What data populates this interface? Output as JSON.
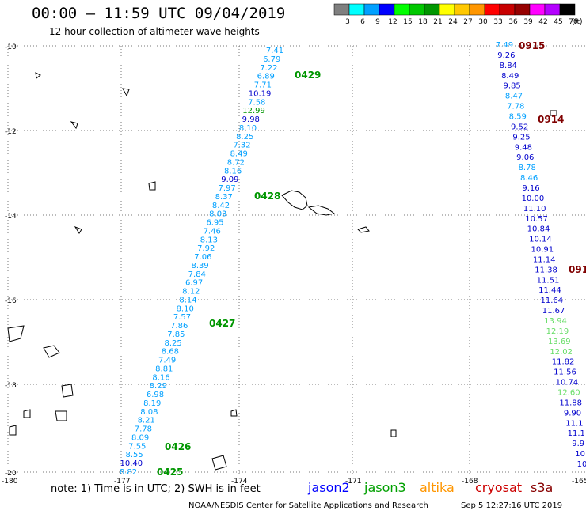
{
  "header": {
    "title": "00:00 – 11:59 UTC 09/04/2019",
    "subtitle": "12 hour collection of altimeter wave heights"
  },
  "legend": {
    "unit": "(ft)",
    "bins": [
      {
        "label": "3",
        "color": "#7f7f7f"
      },
      {
        "label": "6",
        "color": "#00ffff"
      },
      {
        "label": "9",
        "color": "#00a0ff"
      },
      {
        "label": "12",
        "color": "#0000ff"
      },
      {
        "label": "15",
        "color": "#00ff00"
      },
      {
        "label": "18",
        "color": "#00c800"
      },
      {
        "label": "21",
        "color": "#009600"
      },
      {
        "label": "24",
        "color": "#ffff00"
      },
      {
        "label": "27",
        "color": "#ffc800"
      },
      {
        "label": "30",
        "color": "#ff9600"
      },
      {
        "label": "33",
        "color": "#ff0000"
      },
      {
        "label": "36",
        "color": "#c80000"
      },
      {
        "label": "39",
        "color": "#960000"
      },
      {
        "label": "42",
        "color": "#ff00ff"
      },
      {
        "label": "45",
        "color": "#b400ff"
      },
      {
        "label": "70",
        "color": "#000000"
      }
    ]
  },
  "axes": {
    "lon_labels": [
      "-180",
      "-177",
      "-174",
      "-171",
      "-168",
      "-165"
    ],
    "lat_labels": [
      "-10",
      "-12",
      "-14",
      "-16",
      "-18",
      "-20"
    ]
  },
  "colors": {
    "cyan_track": "#00a0ff",
    "blue_track": "#0000cc",
    "green_pass": "#009600",
    "cryosat": "#cc0000",
    "light_green": "#66dd66",
    "pass_dark_red": "#800000"
  },
  "tracks": {
    "jason3_west": {
      "values": [
        "7.41",
        "6.79",
        "7.22",
        "6.89",
        "7.71",
        "10.19",
        "7.58",
        "12.99",
        "9.98",
        "8.10",
        "8.25",
        "7.32",
        "8.49",
        "8.72",
        "8.16",
        "9.09",
        "7.97",
        "8.37",
        "8.42",
        "8.03",
        "6.95",
        "7.46",
        "8.13",
        "7.92",
        "7.06",
        "8.39",
        "7.84",
        "6.97",
        "8.12",
        "8.14",
        "8.10",
        "7.57",
        "7.86",
        "7.85",
        "8.25",
        "8.68",
        "7.49",
        "8.81",
        "8.16",
        "8.29",
        "6.98",
        "8.19",
        "8.08",
        "8.21",
        "7.78",
        "8.09",
        "7.55",
        "8.55",
        "10.40",
        "8.82"
      ],
      "colors": [
        "cyan",
        "cyan",
        "cyan",
        "cyan",
        "cyan",
        "blue",
        "cyan",
        "green",
        "blue",
        "cyan",
        "cyan",
        "cyan",
        "cyan",
        "cyan",
        "cyan",
        "blue",
        "cyan",
        "cyan",
        "cyan",
        "cyan",
        "cyan",
        "cyan",
        "cyan",
        "cyan",
        "cyan",
        "cyan",
        "cyan",
        "cyan",
        "cyan",
        "cyan",
        "cyan",
        "cyan",
        "cyan",
        "cyan",
        "cyan",
        "cyan",
        "cyan",
        "cyan",
        "cyan",
        "cyan",
        "cyan",
        "cyan",
        "cyan",
        "cyan",
        "cyan",
        "cyan",
        "cyan",
        "cyan",
        "blue",
        "cyan"
      ]
    },
    "east": {
      "values": [
        "7.49",
        "9.26",
        "8.84",
        "8.49",
        "9.85",
        "8.47",
        "7.78",
        "8.59",
        "9.52",
        "9.25",
        "9.48",
        "9.06",
        "8.78",
        "8.46",
        "9.16",
        "10.00",
        "11.10",
        "10.57",
        "10.84",
        "10.14",
        "10.91",
        "11.14",
        "11.38",
        "11.51",
        "11.44",
        "11.64",
        "11.67",
        "13.94",
        "12.19",
        "13.69",
        "12.02",
        "11.82",
        "11.56",
        "10.74",
        "12.60",
        "11.88",
        "9.90",
        "11.1",
        "11.1",
        "9.9",
        "10",
        "10"
      ],
      "colors": [
        "cyan",
        "blue",
        "blue",
        "blue",
        "blue",
        "cyan",
        "cyan",
        "cyan",
        "blue",
        "blue",
        "blue",
        "blue",
        "cyan",
        "cyan",
        "blue",
        "blue",
        "blue",
        "blue",
        "blue",
        "blue",
        "blue",
        "blue",
        "blue",
        "blue",
        "blue",
        "blue",
        "blue",
        "lgreen",
        "lgreen",
        "lgreen",
        "lgreen",
        "blue",
        "blue",
        "blue",
        "lgreen",
        "blue",
        "blue",
        "blue",
        "blue",
        "blue",
        "blue",
        "blue"
      ]
    }
  },
  "pass_labels": {
    "p0429": "0429",
    "p0428": "0428",
    "p0427": "0427",
    "p0426": "0426",
    "p0425": "0425",
    "p0915": "0915",
    "p0914": "0914",
    "p091x": "091"
  },
  "note": "note: 1) Time is in UTC; 2) SWH is in feet",
  "satellites": [
    {
      "name": "jason2",
      "color": "#0000ff"
    },
    {
      "name": "jason3",
      "color": "#00a000"
    },
    {
      "name": "altika",
      "color": "#ff9600"
    },
    {
      "name": "cryosat",
      "color": "#cc0000"
    },
    {
      "name": "s3a",
      "color": "#880000"
    }
  ],
  "footer": {
    "credit": "NOAA/NESDIS Center for Satellite Applications and Research",
    "timestamp": "Sep  5 12:27:16 UTC 2019"
  }
}
